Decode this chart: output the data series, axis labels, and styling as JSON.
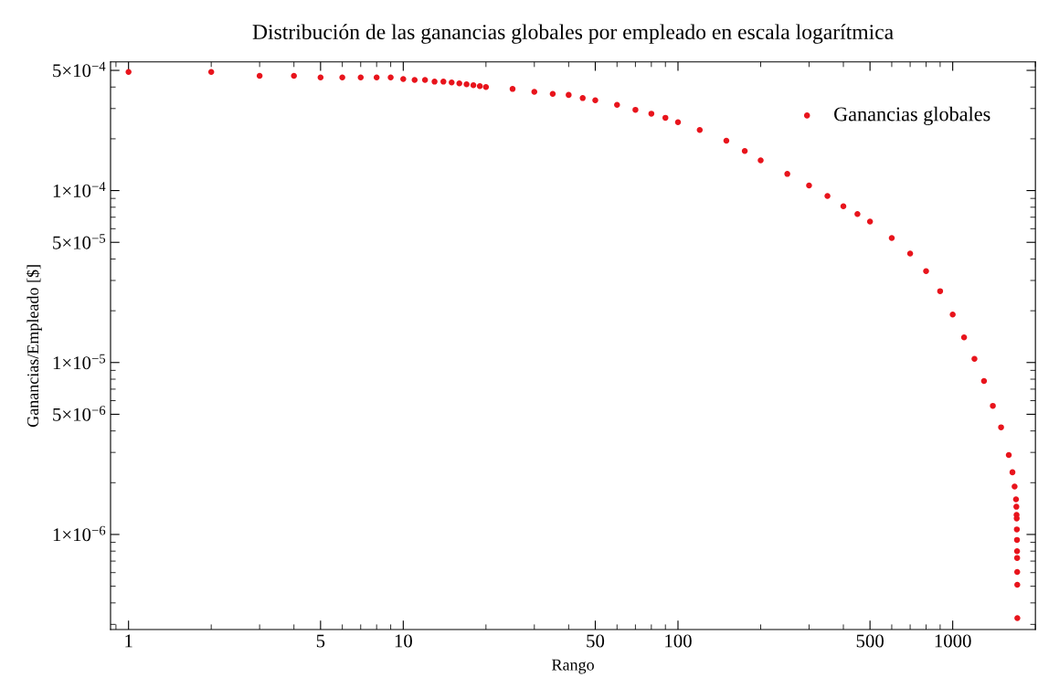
{
  "chart_data": {
    "type": "scatter",
    "title": "Distribución de las ganancias globales por empleado en escala logarítmica",
    "xlabel": "Rango",
    "ylabel": "Ganancias/Empleado [$]",
    "log": "xy",
    "xlim": [
      0.86,
      2000
    ],
    "ylim": [
      2.8e-07,
      0.00056
    ],
    "xticks": [
      1,
      5,
      10,
      50,
      100,
      500,
      1000
    ],
    "yticks": [
      {
        "value": 0.0005,
        "label": "5×10$^{−4}$"
      },
      {
        "value": 0.0001,
        "label": "1×10$^{−4}$"
      },
      {
        "value": 5e-05,
        "label": "5×10$^{−5}$"
      },
      {
        "value": 1e-05,
        "label": "1×10$^{−5}$"
      },
      {
        "value": 5e-06,
        "label": "5×10$^{−6}$"
      },
      {
        "value": 1e-06,
        "label": "1×10$^{−6}$"
      }
    ],
    "legend": "top right",
    "marker": "circle",
    "grid": false,
    "series": [
      {
        "name": "Ganancias globales",
        "color": "#e8141c",
        "x": [
          1,
          2,
          3,
          4,
          5,
          6,
          7,
          8,
          9,
          10,
          11,
          12,
          13,
          14,
          15,
          16,
          17,
          18,
          19,
          20,
          25,
          30,
          35,
          40,
          45,
          50,
          60,
          70,
          80,
          90,
          100,
          120,
          150,
          175,
          200,
          250,
          300,
          350,
          400,
          450,
          500,
          600,
          700,
          800,
          900,
          1000,
          1100,
          1200,
          1300,
          1400,
          1500,
          1600,
          1650,
          1680,
          1700,
          1705,
          1708,
          1710,
          1712,
          1714,
          1715,
          1716,
          1717,
          1718,
          1719
        ],
        "values": [
          0.00049,
          0.00049,
          0.000465,
          0.000465,
          0.000455,
          0.000455,
          0.000455,
          0.000455,
          0.000455,
          0.000445,
          0.00044,
          0.00044,
          0.00043,
          0.00043,
          0.000425,
          0.00042,
          0.000415,
          0.00041,
          0.000405,
          0.0004,
          0.00039,
          0.000375,
          0.000365,
          0.00036,
          0.000345,
          0.000335,
          0.000315,
          0.000295,
          0.00028,
          0.000265,
          0.00025,
          0.000225,
          0.000195,
          0.00017,
          0.00015,
          0.000125,
          0.000107,
          9.3e-05,
          8.1e-05,
          7.3e-05,
          6.6e-05,
          5.3e-05,
          4.3e-05,
          3.4e-05,
          2.6e-05,
          1.9e-05,
          1.4e-05,
          1.05e-05,
          7.8e-06,
          5.6e-06,
          4.2e-06,
          2.9e-06,
          2.3e-06,
          1.9e-06,
          1.6e-06,
          1.45e-06,
          1.3e-06,
          1.24e-06,
          1.07e-06,
          9.3e-07,
          8e-07,
          7.3e-07,
          6.05e-07,
          5.1e-07,
          3.26e-07
        ]
      }
    ]
  }
}
